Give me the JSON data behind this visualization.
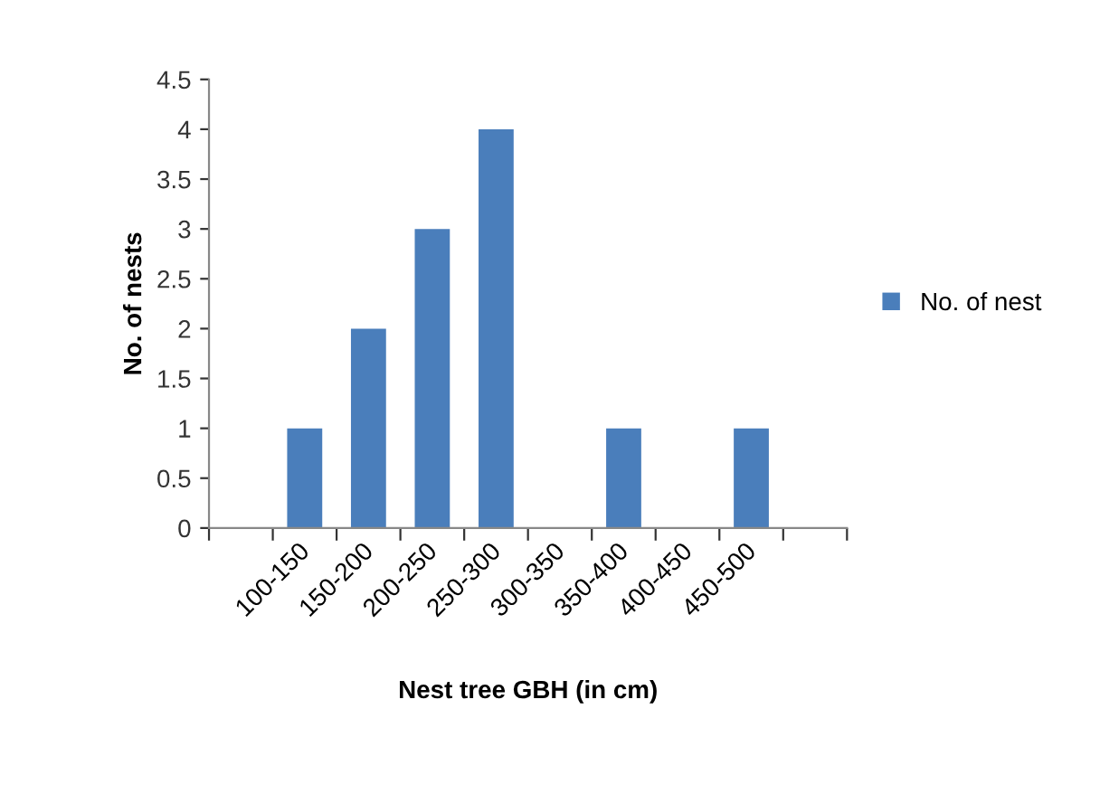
{
  "chart_data": {
    "type": "bar",
    "xlabel": "Nest tree GBH (in cm)",
    "ylabel": "No. of nests",
    "categories": [
      null,
      "100-150",
      "150-200",
      "200-250",
      "250-300",
      "300-350",
      "350-400",
      "400-450",
      "450-500",
      null
    ],
    "series": [
      {
        "name": "No. of nest",
        "color": "#4a7ebb",
        "values": [
          null,
          1,
          2,
          3,
          4,
          0,
          1,
          0,
          1,
          null
        ]
      }
    ],
    "ylim": [
      0,
      4.5
    ],
    "yticks": [
      0,
      0.5,
      1,
      1.5,
      2,
      2.5,
      3,
      3.5,
      4,
      4.5
    ],
    "grid": false,
    "legend": "right"
  }
}
